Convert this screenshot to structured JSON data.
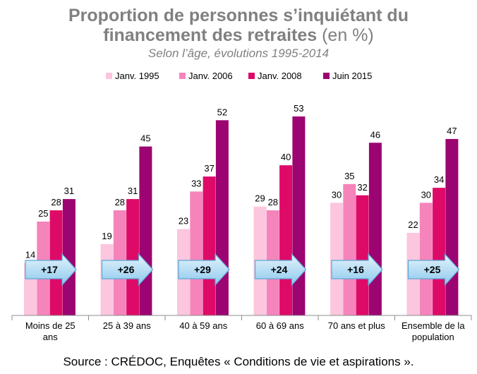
{
  "title_line1": "Proportion de personnes s’inquiétant du",
  "title_line2": "financement des retraites",
  "title_unit": "(en %)",
  "subtitle": "Selon l’âge, évolutions 1995-2014",
  "source": "Source : CRÉDOC, Enquêtes « Conditions de vie et aspirations ».",
  "chart_data": {
    "type": "bar",
    "categories": [
      [
        "Moins de 25",
        "ans"
      ],
      [
        "25 à 39 ans"
      ],
      [
        "40 à 59 ans"
      ],
      [
        "60 à 69 ans"
      ],
      [
        "70 ans et plus"
      ],
      [
        "Ensemble de la",
        "population"
      ]
    ],
    "series": [
      {
        "name": "Janv. 1995",
        "color": "#fcc6de",
        "values": [
          14,
          19,
          23,
          29,
          30,
          22
        ]
      },
      {
        "name": "Janv. 2006",
        "color": "#f584bb",
        "values": [
          25,
          28,
          33,
          28,
          35,
          30
        ]
      },
      {
        "name": "Janv. 2008",
        "color": "#de0a68",
        "values": [
          28,
          31,
          37,
          40,
          32,
          34
        ]
      },
      {
        "name": "Juin 2015",
        "color": "#9c0471",
        "values": [
          31,
          45,
          52,
          53,
          46,
          47
        ]
      }
    ],
    "changes": [
      "+17",
      "+26",
      "+29",
      "+24",
      "+16",
      "+25"
    ],
    "ylim": [
      0,
      60
    ],
    "legend_position": "top",
    "grid": false
  }
}
